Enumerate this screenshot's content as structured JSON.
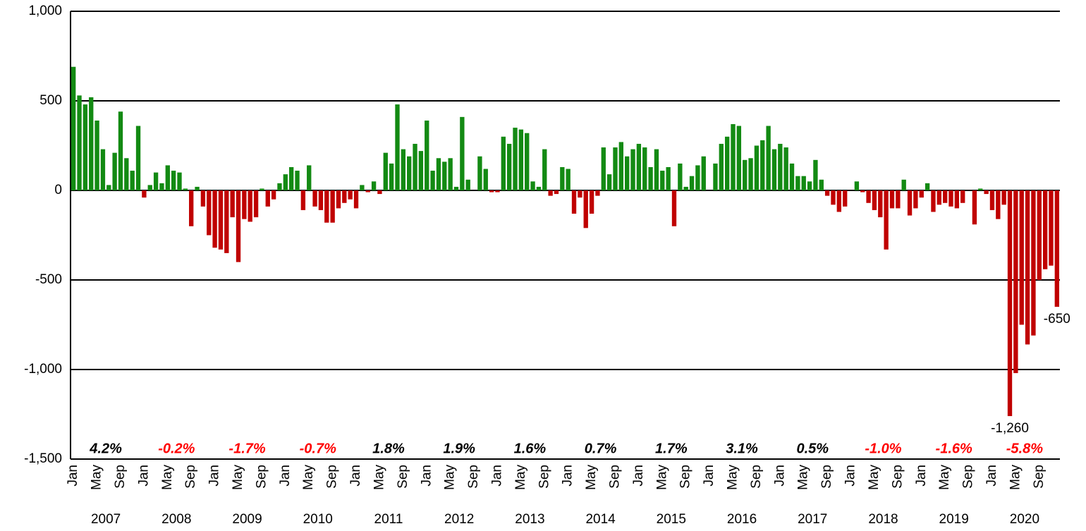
{
  "chart_data": {
    "type": "bar",
    "categories": [
      "Jan",
      null,
      null,
      null,
      "May",
      null,
      null,
      null,
      "Sep",
      null,
      null,
      null,
      "Jan",
      null,
      null,
      null,
      "May",
      null,
      null,
      null,
      "Sep",
      null,
      null,
      null,
      "Jan",
      null,
      null,
      null,
      "May",
      null,
      null,
      null,
      "Sep",
      null,
      null,
      null,
      "Jan",
      null,
      null,
      null,
      "May",
      null,
      null,
      null,
      "Sep",
      null,
      null,
      null,
      "Jan",
      null,
      null,
      null,
      "May",
      null,
      null,
      null,
      "Sep",
      null,
      null,
      null,
      "Jan",
      null,
      null,
      null,
      "May",
      null,
      null,
      null,
      "Sep",
      null,
      null,
      null,
      "Jan",
      null,
      null,
      null,
      "May",
      null,
      null,
      null,
      "Sep",
      null,
      null,
      null,
      "Jan",
      null,
      null,
      null,
      "May",
      null,
      null,
      null,
      "Sep",
      null,
      null,
      null,
      "Jan",
      null,
      null,
      null,
      "May",
      null,
      null,
      null,
      "Sep",
      null,
      null,
      null,
      "Jan",
      null,
      null,
      null,
      "May",
      null,
      null,
      null,
      "Sep",
      null,
      null,
      null,
      "Jan",
      null,
      null,
      null,
      "May",
      null,
      null,
      null,
      "Sep",
      null,
      null,
      null,
      "Jan",
      null,
      null,
      null,
      "May",
      null,
      null,
      null,
      "Sep",
      null,
      null,
      null,
      "Jan",
      null,
      null,
      null,
      "May",
      null,
      null,
      null,
      "Sep",
      null,
      null,
      null,
      "Jan",
      null,
      null,
      null,
      "May",
      null,
      null,
      null,
      "Sep",
      null,
      null,
      null
    ],
    "values": [
      690,
      530,
      480,
      520,
      390,
      230,
      30,
      210,
      440,
      180,
      110,
      360,
      -40,
      30,
      100,
      40,
      140,
      110,
      100,
      10,
      -200,
      20,
      -90,
      -250,
      -320,
      -330,
      -350,
      -150,
      -400,
      -160,
      -175,
      -150,
      10,
      -90,
      -50,
      40,
      90,
      130,
      110,
      -110,
      140,
      -90,
      -110,
      -180,
      -180,
      -100,
      -70,
      -50,
      -100,
      30,
      -10,
      50,
      -20,
      210,
      150,
      480,
      230,
      190,
      260,
      220,
      390,
      110,
      180,
      160,
      180,
      20,
      410,
      60,
      0,
      190,
      120,
      -10,
      -10,
      300,
      260,
      350,
      340,
      320,
      50,
      20,
      230,
      -30,
      -20,
      130,
      120,
      -130,
      -40,
      -210,
      -130,
      -30,
      240,
      90,
      240,
      270,
      190,
      230,
      260,
      240,
      130,
      230,
      110,
      130,
      -200,
      150,
      20,
      80,
      140,
      190,
      0,
      150,
      260,
      300,
      370,
      360,
      170,
      180,
      250,
      280,
      360,
      230,
      260,
      240,
      150,
      80,
      80,
      50,
      170,
      60,
      -30,
      -80,
      -120,
      -90,
      0,
      50,
      -10,
      -70,
      -110,
      -150,
      -330,
      -100,
      -100,
      60,
      -140,
      -100,
      -40,
      40,
      -120,
      -80,
      -70,
      -90,
      -100,
      -70,
      0,
      -190,
      10,
      -20,
      -110,
      -160,
      -80,
      -1260,
      -1020,
      -750,
      -860,
      -810,
      -500,
      -440,
      -420,
      -650
    ],
    "value_labels": {
      "159": "-1,260",
      "167": "-650"
    },
    "years": [
      "2007",
      "2008",
      "2009",
      "2010",
      "2011",
      "2012",
      "2013",
      "2014",
      "2015",
      "2016",
      "2017",
      "2018",
      "2019",
      "2020"
    ],
    "annotations": [
      {
        "text": "4.2%",
        "color": "#000000"
      },
      {
        "text": "-0.2%",
        "color": "#ff0000"
      },
      {
        "text": "-1.7%",
        "color": "#ff0000"
      },
      {
        "text": "-0.7%",
        "color": "#ff0000"
      },
      {
        "text": "1.8%",
        "color": "#000000"
      },
      {
        "text": "1.9%",
        "color": "#000000"
      },
      {
        "text": "1.6%",
        "color": "#000000"
      },
      {
        "text": "0.7%",
        "color": "#000000"
      },
      {
        "text": "1.7%",
        "color": "#000000"
      },
      {
        "text": "3.1%",
        "color": "#000000"
      },
      {
        "text": "0.5%",
        "color": "#000000"
      },
      {
        "text": "-1.0%",
        "color": "#ff0000"
      },
      {
        "text": "-1.6%",
        "color": "#ff0000"
      },
      {
        "text": "-5.8%",
        "color": "#ff0000"
      }
    ],
    "positive_color": "#138a13",
    "negative_color": "#c00000",
    "ylim": [
      -1500,
      1000
    ],
    "yticks": [
      {
        "value": -1500,
        "label": "-1,500"
      },
      {
        "value": -1000,
        "label": "-1,000"
      },
      -500,
      0,
      500,
      {
        "value": 1000,
        "label": "1,000"
      }
    ],
    "grid": true
  }
}
